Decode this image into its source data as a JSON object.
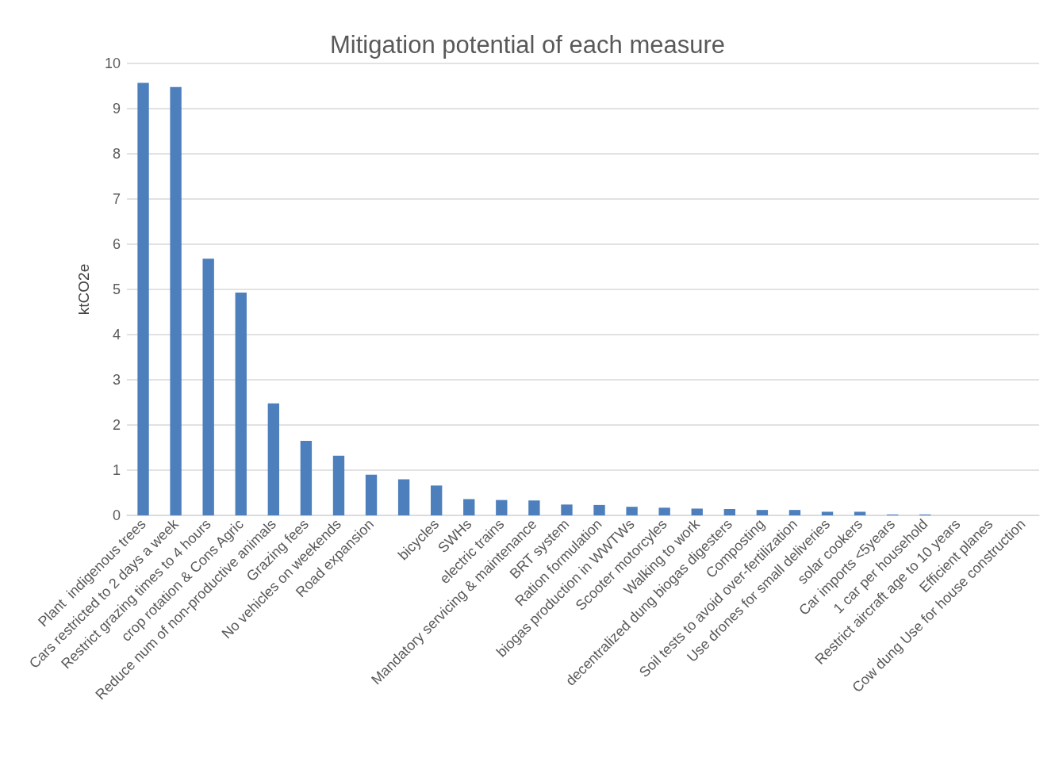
{
  "chart_data": {
    "type": "bar",
    "title": "Mitigation potential of each measure",
    "ylabel": "ktCO2e",
    "categories": [
      "Plant  indigenous trees",
      "Cars restricted to 2 days a week",
      "Restrict grazing times to 4 hours",
      "crop rotation & Cons Agric",
      "Reduce num of non-productive animals",
      "Grazing fees",
      "No vehicles on weekends",
      "Road expansion",
      null,
      "bicycles",
      "SWHs",
      "electric trains",
      "Mandatory servicing & maintenance",
      "BRT system",
      "Ration formulation",
      "biogas production in WWTWs",
      "Scooter motorcyles",
      "Walking to work",
      "decentralized dung biogas digesters",
      "Composting",
      "Soil tests to avoid over-fertilization",
      "Use drones for small deliveries",
      "solar cookers",
      "Car imports <5years",
      "1 car per household",
      "Restrict aircraft age to 10 years",
      "Efficient planes",
      "Cow dung Use for house construction"
    ],
    "values": [
      9.57,
      9.48,
      5.68,
      4.93,
      2.48,
      1.65,
      1.32,
      0.9,
      0.8,
      0.66,
      0.36,
      0.34,
      0.33,
      0.24,
      0.23,
      0.19,
      0.17,
      0.15,
      0.14,
      0.12,
      0.12,
      0.08,
      0.08,
      0.02,
      0.02,
      0,
      0,
      0
    ],
    "color": "#4e7fbd",
    "ylim": [
      0,
      10
    ],
    "yticks": [
      0,
      1,
      2,
      3,
      4,
      5,
      6,
      7,
      8,
      9,
      10
    ],
    "grid": "y"
  }
}
